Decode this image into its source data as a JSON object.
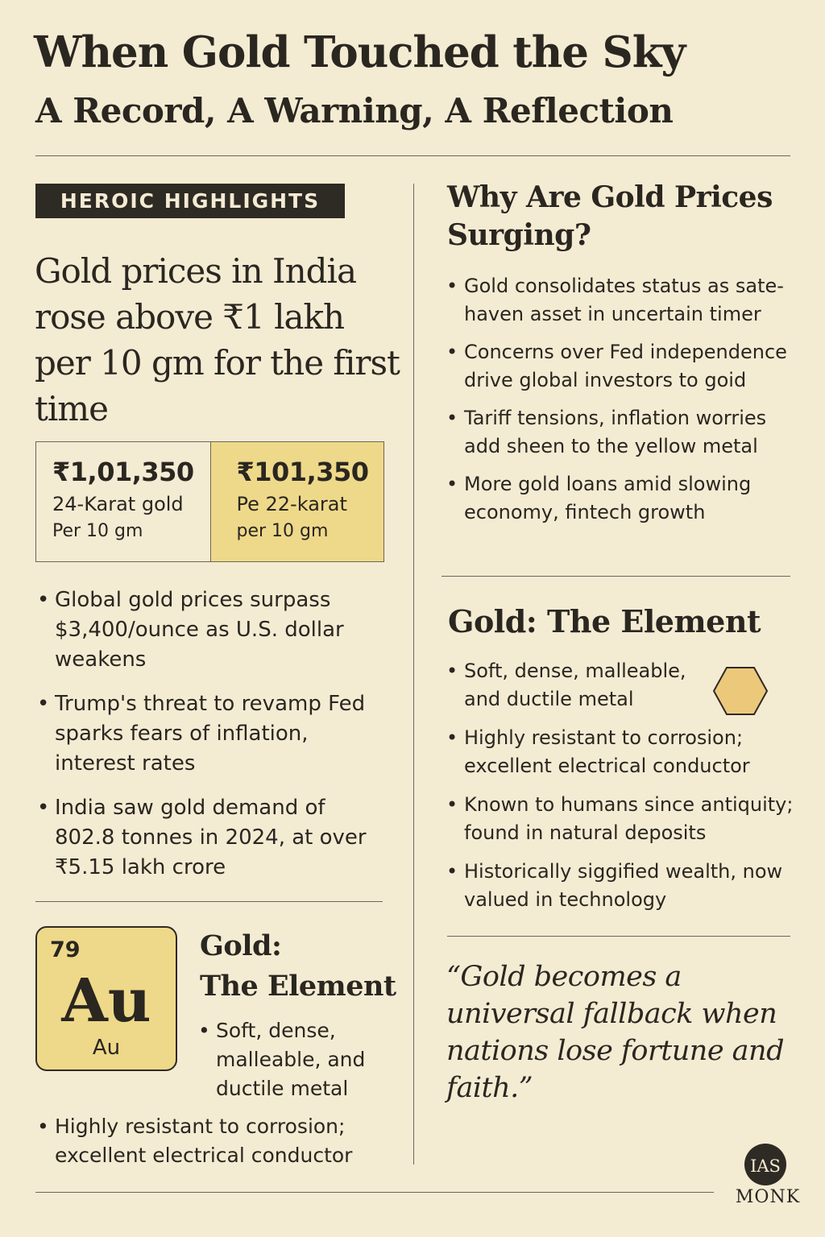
{
  "header": {
    "title": "When Gold Touched the Sky",
    "subtitle": "A Record, A Warning, A Reflection"
  },
  "left": {
    "section_tag": "HEROIC HIGHLIGHTS",
    "headline": "Gold prices in India rose above ₹1 lakh per 10 gm for the first time",
    "prices": [
      {
        "amount": "₹1,01,350",
        "label": "24-Karat gold",
        "unit": "Per 10 gm"
      },
      {
        "amount": "₹101,350",
        "label": "Pe 22-karat",
        "unit": "per 10 gm"
      }
    ],
    "bullets": [
      "Global gold prices surpass $3,400/ounce as U.S. dollar weakens",
      "Trump's threat to revamp Fed sparks fears of inflation, interest rates",
      "India saw gold demand of 802.8 tonnes in 2024, at over ₹5.15 lakh crore"
    ],
    "element_card": {
      "atomic_number": "79",
      "symbol": "Au",
      "symbol_small": "Au"
    },
    "element_title_line1": "Gold:",
    "element_title_line2": "The Element",
    "element_bullets": [
      "Soft, dense, malleable, and ductile metal"
    ],
    "element_bullets_extra": [
      "Highly resistant to corrosion; excellent electrical conductor"
    ]
  },
  "right": {
    "why_heading": "Why Are Gold Prices Surging?",
    "why_bullets": [
      "Gold consolidates status as sate-haven asset in uncertain timer",
      "Concerns over Fed independence drive global investors to goid",
      "Tariff tensions, inflation worries add sheen to the yellow metal",
      "More gold loans amid slowing economy, fintech growth"
    ],
    "element_heading": "Gold: The Element",
    "element_bullets": [
      "Soft, dense, malleable, and ductile metal",
      "Highly resistant to corrosion; excellent electrical conductor",
      "Known to humans since antiquity; found in natural deposits",
      "Historically siggified wealth, now valued in technology"
    ],
    "quote": "“Gold becomes a universal fallback when nations lose fortune and faith.”"
  },
  "logo": {
    "mark": "IAS",
    "text": "MONK"
  },
  "colors": {
    "background": "#f4ebd3",
    "ink": "#2a2620",
    "gold_fill": "#eed98a",
    "hexagon": "#ecc97a"
  }
}
